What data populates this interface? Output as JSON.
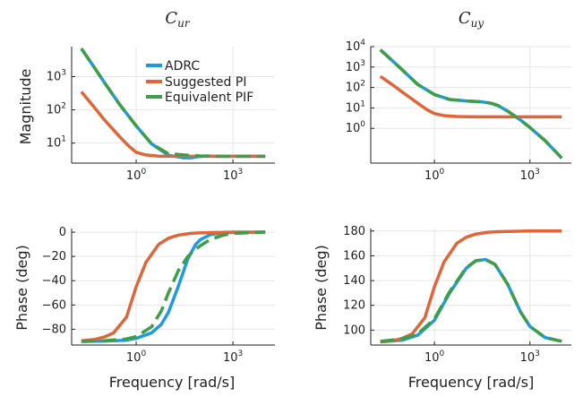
{
  "figure": {
    "xlabel": "Frequency [rad/s]"
  },
  "chart_data": [
    {
      "id": "cur-mag",
      "type": "line",
      "title": "C",
      "title_sub": "ur",
      "xlabel": "",
      "ylabel": "Magnitude",
      "xscale": "log",
      "yscale": "log",
      "xlim": [
        0.01,
        20000
      ],
      "ylim": [
        2.5,
        8000
      ],
      "xticks": [
        {
          "value": 1,
          "base": "10",
          "exp": "0"
        },
        {
          "value": 1000,
          "base": "10",
          "exp": "3"
        }
      ],
      "yticks": [
        {
          "value": 10,
          "base": "10",
          "exp": "1"
        },
        {
          "value": 100,
          "base": "10",
          "exp": "2"
        },
        {
          "value": 1000,
          "base": "10",
          "exp": "3"
        }
      ],
      "legend": "top-right",
      "series": [
        {
          "name": "ADRC",
          "color": "#1E9BE0",
          "dash": "solid",
          "x": [
            0.02,
            0.05,
            0.1,
            0.3,
            1,
            3,
            10,
            30,
            50,
            80,
            150,
            300,
            1000,
            3000,
            10000
          ],
          "y": [
            7000,
            1900,
            700,
            150,
            33,
            9.5,
            4.3,
            3.6,
            3.6,
            3.9,
            4.1,
            4.0,
            4.0,
            4.0,
            4.0
          ]
        },
        {
          "name": "Suggested PI",
          "color": "#E0663A",
          "dash": "solid",
          "x": [
            0.02,
            0.05,
            0.1,
            0.3,
            0.6,
            1,
            2,
            5,
            10,
            30,
            100,
            1000,
            10000
          ],
          "y": [
            350,
            120,
            52,
            16,
            8,
            5.3,
            4.4,
            4.05,
            4.0,
            4.0,
            4.0,
            4.0,
            4.0
          ]
        },
        {
          "name": "Equivalent PIF",
          "color": "#3E9E46",
          "dash": "long-dash",
          "x": [
            0.02,
            0.05,
            0.1,
            0.3,
            1,
            3,
            10,
            30,
            60,
            100,
            300,
            1000,
            3000,
            10000
          ],
          "y": [
            7000,
            1900,
            700,
            150,
            33,
            9.5,
            4.8,
            4.4,
            4.2,
            4.1,
            4.0,
            4.0,
            4.0,
            4.0
          ]
        }
      ]
    },
    {
      "id": "cuy-mag",
      "type": "line",
      "title": "C",
      "title_sub": "uy",
      "xlabel": "",
      "ylabel": "",
      "xscale": "log",
      "yscale": "log",
      "xlim": [
        0.01,
        20000
      ],
      "ylim": [
        0.02,
        10000
      ],
      "xticks": [
        {
          "value": 1,
          "base": "10",
          "exp": "0"
        },
        {
          "value": 1000,
          "base": "10",
          "exp": "3"
        }
      ],
      "yticks": [
        {
          "value": 1,
          "base": "10",
          "exp": "0"
        },
        {
          "value": 10,
          "base": "10",
          "exp": "1"
        },
        {
          "value": 100,
          "base": "10",
          "exp": "2"
        },
        {
          "value": 1000,
          "base": "10",
          "exp": "3"
        },
        {
          "value": 10000,
          "base": "10",
          "exp": "4"
        }
      ],
      "legend": "none",
      "series": [
        {
          "name": "ADRC",
          "color": "#1E9BE0",
          "dash": "solid",
          "x": [
            0.02,
            0.05,
            0.1,
            0.3,
            1,
            3,
            10,
            30,
            60,
            100,
            200,
            500,
            1000,
            3000,
            10000
          ],
          "y": [
            7000,
            1900,
            700,
            140,
            45,
            26,
            22,
            20,
            17,
            13,
            7,
            2.6,
            1.1,
            0.25,
            0.035
          ]
        },
        {
          "name": "Suggested PI",
          "color": "#E0663A",
          "dash": "solid",
          "x": [
            0.02,
            0.05,
            0.1,
            0.3,
            0.6,
            1,
            2,
            5,
            10,
            30,
            100,
            1000,
            10000
          ],
          "y": [
            350,
            130,
            58,
            17,
            8,
            5.3,
            4.2,
            3.8,
            3.7,
            3.65,
            3.65,
            3.65,
            3.65
          ]
        },
        {
          "name": "Equivalent PIF",
          "color": "#3E9E46",
          "dash": "long-dash",
          "x": [
            0.02,
            0.05,
            0.1,
            0.3,
            1,
            3,
            10,
            30,
            60,
            100,
            200,
            500,
            1000,
            3000,
            10000
          ],
          "y": [
            7000,
            1900,
            700,
            140,
            45,
            26,
            22,
            20,
            17,
            13,
            7,
            2.6,
            1.1,
            0.25,
            0.035
          ]
        }
      ]
    },
    {
      "id": "cur-phase",
      "type": "line",
      "title": "",
      "xlabel": "Frequency [rad/s]",
      "ylabel": "Phase (deg)",
      "xscale": "log",
      "yscale": "linear",
      "xlim": [
        0.01,
        20000
      ],
      "ylim": [
        -93,
        3
      ],
      "xticks": [
        {
          "value": 1,
          "base": "10",
          "exp": "0"
        },
        {
          "value": 1000,
          "base": "10",
          "exp": "3"
        }
      ],
      "yticks": [
        {
          "value": 0,
          "label": "0"
        },
        {
          "value": -20,
          "label": "−20"
        },
        {
          "value": -40,
          "label": "−40"
        },
        {
          "value": -60,
          "label": "−60"
        },
        {
          "value": -80,
          "label": "−80"
        }
      ],
      "legend": "none",
      "series": [
        {
          "name": "ADRC",
          "color": "#1E9BE0",
          "dash": "solid",
          "x": [
            0.02,
            0.1,
            0.5,
            1,
            3,
            6,
            10,
            20,
            40,
            70,
            100,
            200,
            500,
            1000,
            10000
          ],
          "y": [
            -90,
            -89.8,
            -89,
            -87.5,
            -83,
            -76,
            -66,
            -45,
            -22,
            -10,
            -6,
            -2,
            -0.5,
            -0.2,
            0
          ]
        },
        {
          "name": "Suggested PI",
          "color": "#E0663A",
          "dash": "solid",
          "x": [
            0.02,
            0.05,
            0.1,
            0.2,
            0.5,
            1,
            2,
            5,
            10,
            20,
            50,
            100,
            1000,
            10000
          ],
          "y": [
            -89.5,
            -88.5,
            -86.5,
            -83,
            -70,
            -45,
            -25,
            -10,
            -5,
            -2.5,
            -1,
            -0.5,
            0,
            0
          ]
        },
        {
          "name": "Equivalent PIF",
          "color": "#3E9E46",
          "dash": "long-dash",
          "x": [
            0.02,
            0.1,
            0.5,
            1,
            3,
            6,
            10,
            20,
            40,
            70,
            100,
            200,
            500,
            1000,
            10000
          ],
          "y": [
            -90,
            -89.5,
            -88,
            -86,
            -78,
            -65,
            -50,
            -32,
            -20,
            -14,
            -11,
            -6,
            -2.5,
            -1,
            0
          ]
        }
      ]
    },
    {
      "id": "cuy-phase",
      "type": "line",
      "title": "",
      "xlabel": "Frequency [rad/s]",
      "ylabel": "Phase (deg)",
      "xscale": "log",
      "yscale": "linear",
      "xlim": [
        0.01,
        20000
      ],
      "ylim": [
        88,
        182
      ],
      "xticks": [
        {
          "value": 1,
          "base": "10",
          "exp": "0"
        },
        {
          "value": 1000,
          "base": "10",
          "exp": "3"
        }
      ],
      "yticks": [
        {
          "value": 100,
          "label": "100"
        },
        {
          "value": 120,
          "label": "120"
        },
        {
          "value": 140,
          "label": "140"
        },
        {
          "value": 160,
          "label": "160"
        },
        {
          "value": 180,
          "label": "180"
        }
      ],
      "legend": "none",
      "series": [
        {
          "name": "ADRC",
          "color": "#1E9BE0",
          "dash": "solid",
          "x": [
            0.02,
            0.1,
            0.3,
            1,
            3,
            10,
            20,
            40,
            80,
            200,
            500,
            1000,
            3000,
            10000
          ],
          "y": [
            90.5,
            92,
            96,
            108,
            130,
            150,
            156,
            157,
            153,
            137,
            115,
            103,
            94,
            91
          ]
        },
        {
          "name": "Suggested PI",
          "color": "#E0663A",
          "dash": "solid",
          "x": [
            0.02,
            0.05,
            0.1,
            0.2,
            0.5,
            1,
            2,
            5,
            10,
            20,
            50,
            100,
            1000,
            10000
          ],
          "y": [
            90.5,
            91.5,
            93.5,
            97,
            110,
            135,
            155,
            170,
            175,
            177.5,
            179,
            179.5,
            180,
            180
          ]
        },
        {
          "name": "Equivalent PIF",
          "color": "#3E9E46",
          "dash": "long-dash",
          "x": [
            0.02,
            0.1,
            0.3,
            1,
            3,
            10,
            20,
            40,
            80,
            200,
            500,
            1000,
            3000,
            10000
          ],
          "y": [
            91,
            93,
            97,
            109,
            131,
            150.5,
            156,
            157,
            153,
            137,
            115,
            103,
            94,
            91
          ]
        }
      ]
    }
  ]
}
